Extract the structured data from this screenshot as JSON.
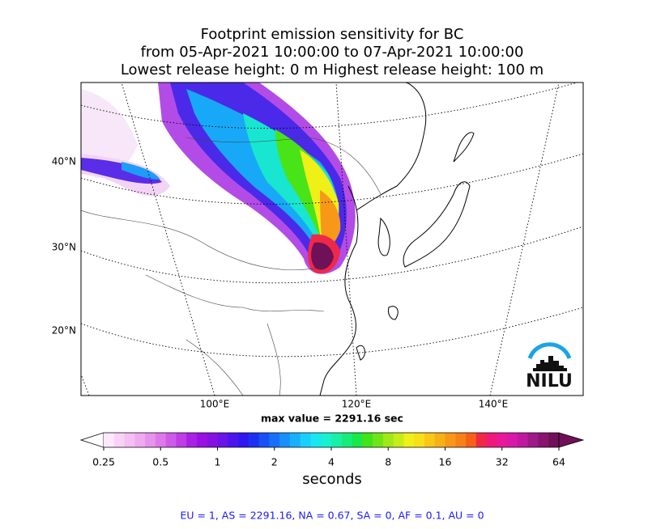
{
  "header": {
    "title_lines": [
      "Footprint emission sensitivity for BC",
      "from 05-Apr-2021 10:00:00 to 07-Apr-2021 10:00:00",
      "Lowest release height: 0 m      Highest release height: 100 m"
    ]
  },
  "map": {
    "lat_labels": [
      "40°N",
      "30°N",
      "20°N"
    ],
    "lon_labels": [
      "100°E",
      "120°E",
      "140°E"
    ],
    "max_value": "max value = 2291.16 sec",
    "logo": "NILU"
  },
  "colorbar": {
    "scale": "log",
    "ticks": [
      0.25,
      0.5,
      1,
      2,
      4,
      8,
      16,
      32,
      64
    ],
    "label": "seconds",
    "colors": [
      "#fde8fb",
      "#f9d3f7",
      "#f4bff3",
      "#efabef",
      "#e793ec",
      "#dd78ea",
      "#cf5ae8",
      "#bf3ce6",
      "#ab1fe4",
      "#9a10e0",
      "#8610e4",
      "#6a12e8",
      "#4c14ec",
      "#3016f0",
      "#1c30f4",
      "#1850f6",
      "#1870f8",
      "#1890fa",
      "#18b0fb",
      "#18d0fc",
      "#18e6f0",
      "#18f0d0",
      "#18f0a8",
      "#18ec78",
      "#18e848",
      "#40e418",
      "#70e418",
      "#a0e818",
      "#c8ec18",
      "#eef018",
      "#f8e018",
      "#f8c818",
      "#f8b018",
      "#f89818",
      "#f88018",
      "#f86018",
      "#f02848",
      "#f01878",
      "#e81898",
      "#d818a8",
      "#c018a0",
      "#a01888",
      "#881470",
      "#701058"
    ]
  },
  "footer": "EU = 1,  AS = 2291.16,  NA = 0.67,  SA = 0,  AF = 0.1,  AU = 0"
}
